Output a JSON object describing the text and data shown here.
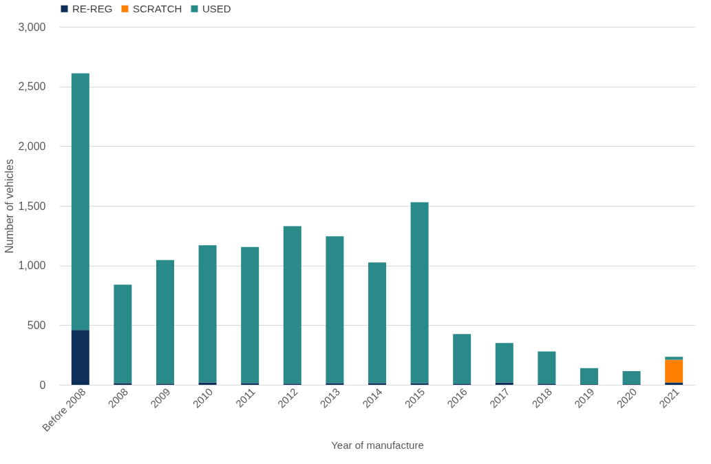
{
  "chart_data": {
    "type": "bar",
    "stacked": true,
    "xlabel": "Year of manufacture",
    "ylabel": "Number of vehicles",
    "categories": [
      "Before 2008",
      "2008",
      "2009",
      "2010",
      "2011",
      "2012",
      "2013",
      "2014",
      "2015",
      "2016",
      "2017",
      "2018",
      "2019",
      "2020",
      "2021"
    ],
    "series": [
      {
        "name": "RE-REG",
        "color": "#0e2f5a",
        "values": [
          460,
          15,
          10,
          20,
          15,
          10,
          15,
          15,
          15,
          10,
          20,
          10,
          5,
          5,
          20
        ]
      },
      {
        "name": "SCRATCH",
        "color": "#ff8000",
        "values": [
          0,
          0,
          0,
          0,
          0,
          0,
          0,
          0,
          0,
          0,
          0,
          0,
          0,
          0,
          190
        ]
      },
      {
        "name": "USED",
        "color": "#2a8a8a",
        "values": [
          2150,
          825,
          1035,
          1150,
          1140,
          1320,
          1230,
          1010,
          1515,
          415,
          330,
          270,
          135,
          110,
          25
        ]
      }
    ],
    "ylim": [
      0,
      3000
    ],
    "yticks": [
      0,
      500,
      {
        "value": 1000,
        "label": "1,000"
      },
      {
        "value": 1500,
        "label": "1,500"
      },
      {
        "value": 2000,
        "label": "2,000"
      },
      {
        "value": 2500,
        "label": "2,500"
      },
      {
        "value": 3000,
        "label": "3,000"
      }
    ],
    "grid": "y",
    "legend": "top"
  }
}
